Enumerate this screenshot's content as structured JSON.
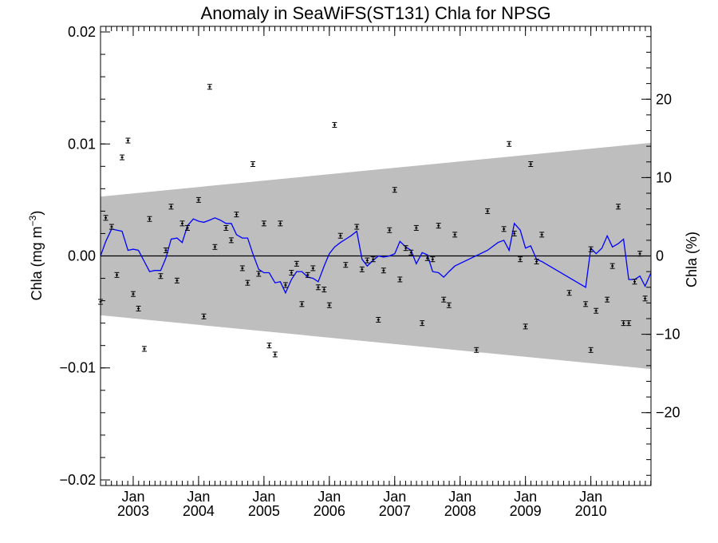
{
  "chart_data": {
    "type": "scatter",
    "title": "Anomaly in SeaWiFS(ST131) Chla for NPSG",
    "ylabel_left": "Chla (mg m",
    "ylabel_left_sup": "−3",
    "ylabel_left_close": ")",
    "ylabel_right": "Chla (%)",
    "xlim": [
      2002.5,
      2010.92
    ],
    "ylim": [
      -0.0205,
      0.0205
    ],
    "ylim_right": [
      -29.3,
      29.3
    ],
    "grid": false,
    "yticks_left": [
      {
        "value": 0.02,
        "label": "0.02"
      },
      {
        "value": 0.01,
        "label": "0.01"
      },
      {
        "value": 0.0,
        "label": "0.00"
      },
      {
        "value": -0.01,
        "label": "−0.01"
      },
      {
        "value": -0.02,
        "label": "−0.02"
      }
    ],
    "yticks_right": [
      {
        "value": 20,
        "label": "20"
      },
      {
        "value": 10,
        "label": "10"
      },
      {
        "value": 0,
        "label": "0"
      },
      {
        "value": -10,
        "label": "−10"
      },
      {
        "value": -20,
        "label": "−20"
      }
    ],
    "xticks": [
      {
        "value": 2003.0,
        "month": "Jan",
        "year": "2003"
      },
      {
        "value": 2004.0,
        "month": "Jan",
        "year": "2004"
      },
      {
        "value": 2005.0,
        "month": "Jan",
        "year": "2005"
      },
      {
        "value": 2006.0,
        "month": "Jan",
        "year": "2006"
      },
      {
        "value": 2007.0,
        "month": "Jan",
        "year": "2007"
      },
      {
        "value": 2008.0,
        "month": "Jan",
        "year": "2008"
      },
      {
        "value": 2009.0,
        "month": "Jan",
        "year": "2009"
      },
      {
        "value": 2010.0,
        "month": "Jan",
        "year": "2010"
      }
    ],
    "envelope": {
      "color": "#bebebe",
      "upper": [
        [
          2002.5,
          0.0053
        ],
        [
          2010.92,
          0.0101
        ]
      ],
      "lower": [
        [
          2002.5,
          -0.0053
        ],
        [
          2010.92,
          -0.0101
        ]
      ]
    },
    "zero_line_color": "#000000",
    "series": [
      {
        "kind": "points_with_errorbars",
        "color": "#000000",
        "points": [
          {
            "x": 2002.5,
            "y": -0.0041
          },
          {
            "x": 2002.58,
            "y": 0.0034
          },
          {
            "x": 2002.67,
            "y": 0.0026
          },
          {
            "x": 2002.75,
            "y": -0.0017
          },
          {
            "x": 2002.83,
            "y": 0.0088
          },
          {
            "x": 2002.92,
            "y": 0.0103
          },
          {
            "x": 2003.0,
            "y": -0.0034
          },
          {
            "x": 2003.08,
            "y": -0.0047
          },
          {
            "x": 2003.17,
            "y": -0.0083
          },
          {
            "x": 2003.25,
            "y": 0.0033
          },
          {
            "x": 2003.42,
            "y": -0.0018
          },
          {
            "x": 2003.5,
            "y": 0.0005
          },
          {
            "x": 2003.58,
            "y": 0.0044
          },
          {
            "x": 2003.67,
            "y": -0.0022
          },
          {
            "x": 2003.75,
            "y": 0.0029
          },
          {
            "x": 2003.83,
            "y": 0.0025
          },
          {
            "x": 2004.0,
            "y": 0.005
          },
          {
            "x": 2004.08,
            "y": -0.0054
          },
          {
            "x": 2004.17,
            "y": 0.0151
          },
          {
            "x": 2004.25,
            "y": 0.0008
          },
          {
            "x": 2004.42,
            "y": 0.0025
          },
          {
            "x": 2004.5,
            "y": 0.0014
          },
          {
            "x": 2004.58,
            "y": 0.0037
          },
          {
            "x": 2004.67,
            "y": -0.0011
          },
          {
            "x": 2004.75,
            "y": -0.0024
          },
          {
            "x": 2004.83,
            "y": 0.0082
          },
          {
            "x": 2004.92,
            "y": -0.0016
          },
          {
            "x": 2005.0,
            "y": 0.0029
          },
          {
            "x": 2005.08,
            "y": -0.008
          },
          {
            "x": 2005.17,
            "y": -0.0088
          },
          {
            "x": 2005.25,
            "y": 0.0029
          },
          {
            "x": 2005.33,
            "y": -0.0026
          },
          {
            "x": 2005.42,
            "y": -0.0015
          },
          {
            "x": 2005.5,
            "y": -0.0007
          },
          {
            "x": 2005.58,
            "y": -0.0043
          },
          {
            "x": 2005.67,
            "y": -0.0017
          },
          {
            "x": 2005.75,
            "y": -0.0011
          },
          {
            "x": 2005.83,
            "y": -0.0028
          },
          {
            "x": 2005.92,
            "y": -0.003
          },
          {
            "x": 2006.0,
            "y": -0.0044
          },
          {
            "x": 2006.08,
            "y": 0.0117
          },
          {
            "x": 2006.17,
            "y": 0.0018
          },
          {
            "x": 2006.25,
            "y": -0.0008
          },
          {
            "x": 2006.42,
            "y": 0.0026
          },
          {
            "x": 2006.5,
            "y": -0.0012
          },
          {
            "x": 2006.58,
            "y": -0.0004
          },
          {
            "x": 2006.67,
            "y": -0.0003
          },
          {
            "x": 2006.75,
            "y": -0.0057
          },
          {
            "x": 2006.83,
            "y": -0.0013
          },
          {
            "x": 2006.92,
            "y": 0.0023
          },
          {
            "x": 2007.0,
            "y": 0.0059
          },
          {
            "x": 2007.08,
            "y": -0.0021
          },
          {
            "x": 2007.17,
            "y": 0.0007
          },
          {
            "x": 2007.25,
            "y": 0.0003
          },
          {
            "x": 2007.33,
            "y": 0.0025
          },
          {
            "x": 2007.42,
            "y": -0.006
          },
          {
            "x": 2007.5,
            "y": -0.0002
          },
          {
            "x": 2007.58,
            "y": -0.0003
          },
          {
            "x": 2007.67,
            "y": 0.0027
          },
          {
            "x": 2007.75,
            "y": -0.0039
          },
          {
            "x": 2007.83,
            "y": -0.0044
          },
          {
            "x": 2007.92,
            "y": 0.0019
          },
          {
            "x": 2008.25,
            "y": -0.0084
          },
          {
            "x": 2008.42,
            "y": 0.004
          },
          {
            "x": 2008.67,
            "y": 0.0024
          },
          {
            "x": 2008.75,
            "y": 0.01
          },
          {
            "x": 2008.83,
            "y": 0.002
          },
          {
            "x": 2008.92,
            "y": -0.0003
          },
          {
            "x": 2009.0,
            "y": -0.0063
          },
          {
            "x": 2009.08,
            "y": 0.0082
          },
          {
            "x": 2009.17,
            "y": -0.0005
          },
          {
            "x": 2009.25,
            "y": 0.0019
          },
          {
            "x": 2009.67,
            "y": -0.0033
          },
          {
            "x": 2009.92,
            "y": -0.0043
          },
          {
            "x": 2010.0,
            "y": 0.0006
          },
          {
            "x": 2010.0,
            "y": -0.0084
          },
          {
            "x": 2010.08,
            "y": -0.0049
          },
          {
            "x": 2010.25,
            "y": -0.0039
          },
          {
            "x": 2010.33,
            "y": -0.0009
          },
          {
            "x": 2010.42,
            "y": 0.0044
          },
          {
            "x": 2010.5,
            "y": -0.006
          },
          {
            "x": 2010.58,
            "y": -0.006
          },
          {
            "x": 2010.67,
            "y": -0.0023
          },
          {
            "x": 2010.75,
            "y": 0.0002
          },
          {
            "x": 2010.83,
            "y": -0.0038
          }
        ]
      },
      {
        "kind": "line",
        "color": "#0000ff",
        "points": [
          [
            2002.5,
            0.0
          ],
          [
            2002.58,
            0.0013
          ],
          [
            2002.67,
            0.0024
          ],
          [
            2002.75,
            0.0023
          ],
          [
            2002.83,
            0.0022
          ],
          [
            2002.92,
            0.0005
          ],
          [
            2003.0,
            0.0006
          ],
          [
            2003.08,
            0.0005
          ],
          [
            2003.17,
            -0.0005
          ],
          [
            2003.25,
            -0.0014
          ],
          [
            2003.33,
            -0.0013
          ],
          [
            2003.42,
            -0.0013
          ],
          [
            2003.5,
            -0.0002
          ],
          [
            2003.58,
            0.0015
          ],
          [
            2003.67,
            0.0016
          ],
          [
            2003.75,
            0.0012
          ],
          [
            2003.83,
            0.0027
          ],
          [
            2003.92,
            0.0033
          ],
          [
            2004.0,
            0.0031
          ],
          [
            2004.08,
            0.003
          ],
          [
            2004.17,
            0.0032
          ],
          [
            2004.25,
            0.0034
          ],
          [
            2004.33,
            0.0032
          ],
          [
            2004.42,
            0.0029
          ],
          [
            2004.5,
            0.0029
          ],
          [
            2004.58,
            0.0019
          ],
          [
            2004.67,
            0.0016
          ],
          [
            2004.75,
            0.0016
          ],
          [
            2004.83,
            0.0002
          ],
          [
            2004.92,
            -0.0012
          ],
          [
            2005.0,
            -0.0015
          ],
          [
            2005.08,
            -0.0015
          ],
          [
            2005.17,
            -0.0024
          ],
          [
            2005.25,
            -0.0023
          ],
          [
            2005.33,
            -0.0033
          ],
          [
            2005.42,
            -0.0021
          ],
          [
            2005.5,
            -0.0014
          ],
          [
            2005.58,
            -0.0014
          ],
          [
            2005.67,
            -0.0019
          ],
          [
            2005.75,
            -0.002
          ],
          [
            2005.83,
            -0.0023
          ],
          [
            2005.92,
            -0.0009
          ],
          [
            2006.0,
            0.0002
          ],
          [
            2006.08,
            0.0008
          ],
          [
            2006.17,
            0.0012
          ],
          [
            2006.25,
            0.0015
          ],
          [
            2006.33,
            0.0018
          ],
          [
            2006.42,
            0.0022
          ],
          [
            2006.5,
            -0.0003
          ],
          [
            2006.58,
            -0.0009
          ],
          [
            2006.67,
            -0.0004
          ],
          [
            2006.75,
            0.0
          ],
          [
            2006.83,
            -0.0001
          ],
          [
            2006.92,
            0.0
          ],
          [
            2007.0,
            0.0002
          ],
          [
            2007.08,
            0.0013
          ],
          [
            2007.17,
            0.0008
          ],
          [
            2007.25,
            0.0005
          ],
          [
            2007.33,
            -0.0007
          ],
          [
            2007.42,
            0.0003
          ],
          [
            2007.5,
            0.0001
          ],
          [
            2007.58,
            -0.0014
          ],
          [
            2007.67,
            -0.0015
          ],
          [
            2007.75,
            -0.0019
          ],
          [
            2007.83,
            -0.0014
          ],
          [
            2007.92,
            -0.0009
          ],
          [
            2008.42,
            0.0005
          ],
          [
            2008.58,
            0.0012
          ],
          [
            2008.67,
            0.0014
          ],
          [
            2008.75,
            0.0005
          ],
          [
            2008.83,
            0.0029
          ],
          [
            2008.92,
            0.0023
          ],
          [
            2009.0,
            0.0007
          ],
          [
            2009.08,
            0.0009
          ],
          [
            2009.17,
            -0.0003
          ],
          [
            2009.25,
            -0.0005
          ],
          [
            2009.92,
            -0.0028
          ],
          [
            2010.0,
            0.0007
          ],
          [
            2010.08,
            0.0002
          ],
          [
            2010.17,
            0.0007
          ],
          [
            2010.25,
            0.0018
          ],
          [
            2010.33,
            0.0008
          ],
          [
            2010.42,
            0.0011
          ],
          [
            2010.5,
            0.0015
          ],
          [
            2010.58,
            -0.0021
          ],
          [
            2010.67,
            -0.0021
          ],
          [
            2010.75,
            -0.0018
          ],
          [
            2010.83,
            -0.0027
          ],
          [
            2010.92,
            -0.0015
          ]
        ]
      }
    ]
  }
}
